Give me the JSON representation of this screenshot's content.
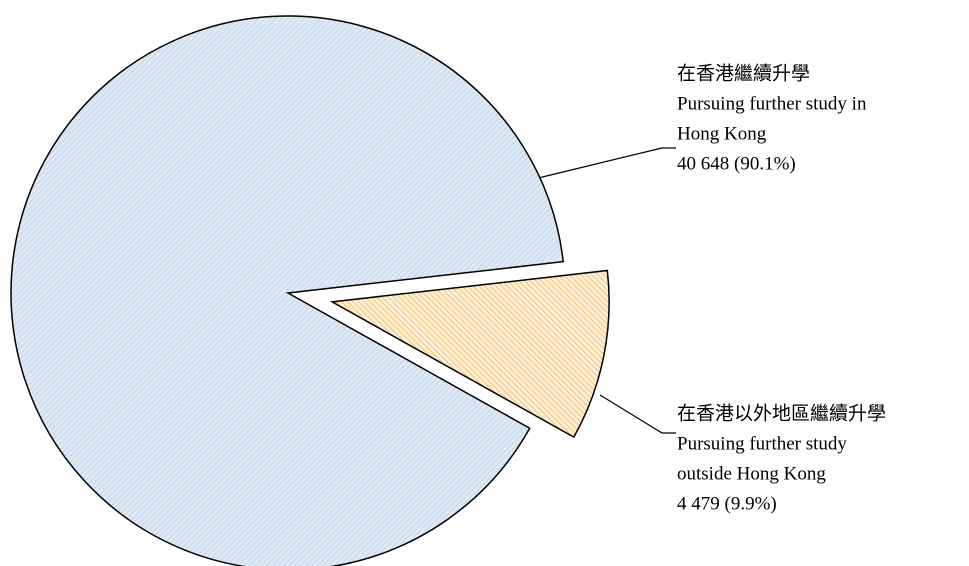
{
  "chart_data": {
    "type": "pie",
    "categories": [
      [
        "在香港繼續升學",
        "Pursuing further study in",
        "Hong Kong"
      ],
      [
        "在香港以外地區繼續升學",
        "Pursuing further study",
        "outside Hong Kong"
      ]
    ],
    "values": [
      40648,
      4479
    ],
    "value_labels": [
      "40 648 (90.1%)",
      "4 479 (9.9%)"
    ],
    "colors": [
      "#dde9f5",
      "#fdf0d6"
    ],
    "hatch_colors": [
      "#b9cbe0",
      "#e9a640"
    ],
    "exploded": [
      false,
      true
    ]
  }
}
